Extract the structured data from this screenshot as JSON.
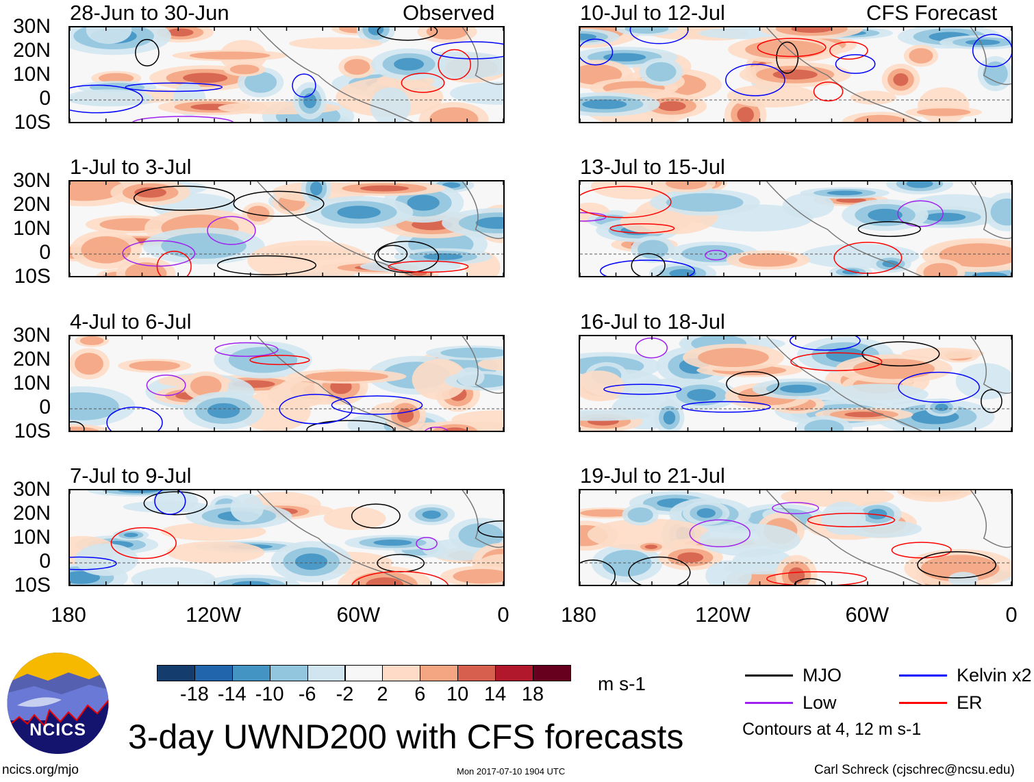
{
  "figure": {
    "title": "3-day UWND200 with CFS forecasts",
    "left_column_label": "Observed",
    "right_column_label": "CFS Forecast",
    "units": "m s-1",
    "website": "ncics.org/mjo",
    "timestamp": "Mon 2017-07-10 1904 UTC",
    "author": "Carl Schreck (cjschrec@ncsu.edu)",
    "logo_text": "NCICS"
  },
  "panels": [
    {
      "title": "28-Jun to 30-Jun",
      "type": "observed"
    },
    {
      "title": "1-Jul to 3-Jul",
      "type": "observed"
    },
    {
      "title": "4-Jul to 6-Jul",
      "type": "observed"
    },
    {
      "title": "7-Jul to 9-Jul",
      "type": "observed"
    },
    {
      "title": "10-Jul to 12-Jul",
      "type": "forecast"
    },
    {
      "title": "13-Jul to 15-Jul",
      "type": "forecast"
    },
    {
      "title": "16-Jul to 18-Jul",
      "type": "forecast"
    },
    {
      "title": "19-Jul to 21-Jul",
      "type": "forecast"
    }
  ],
  "lat_labels": [
    "30N",
    "20N",
    "10N",
    "0",
    "10S"
  ],
  "lon_labels": [
    "180",
    "120W",
    "60W",
    "0"
  ],
  "colorbar": {
    "labels": [
      "-18",
      "-14",
      "-10",
      "-6",
      "-2",
      "2",
      "6",
      "10",
      "14",
      "18"
    ],
    "colors": [
      "#143c6c",
      "#2166ac",
      "#4393c3",
      "#92c5de",
      "#d1e5f0",
      "#f7f7f7",
      "#fddbc7",
      "#f4a582",
      "#d6604d",
      "#b2182b",
      "#67001f"
    ]
  },
  "legend": {
    "items": [
      {
        "label": "MJO",
        "color": "#000000"
      },
      {
        "label": "Kelvin x2",
        "color": "#0000ff"
      },
      {
        "label": "Low",
        "color": "#a020f0"
      },
      {
        "label": "ER",
        "color": "#ff0000"
      }
    ],
    "note": "Contours at 4, 12 m s-1"
  }
}
